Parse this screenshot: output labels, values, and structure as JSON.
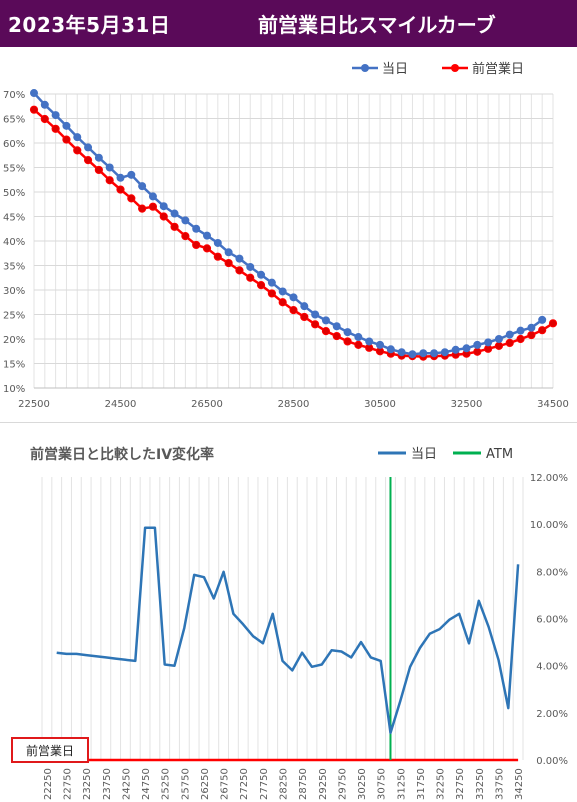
{
  "header": {
    "date": "2023年5月31日",
    "title": "前営業日比スマイルカーブ"
  },
  "colors": {
    "header_bg": "#5a0a59",
    "today": "#4472c4",
    "previous": "#ff0000",
    "atm": "#00b050",
    "iv_change": "#2e75b6"
  },
  "prev_day_label": "前営業日",
  "chart_data": [
    {
      "type": "line",
      "legend": [
        "当日",
        "前営業日"
      ],
      "legend_position": "top-right",
      "grid": true,
      "xlim": [
        22500,
        34500
      ],
      "x_ticks": [
        22500,
        24500,
        26500,
        28500,
        30500,
        32500,
        34500
      ],
      "ylim": [
        10,
        70
      ],
      "y_ticks": [
        "10%",
        "15%",
        "20%",
        "25%",
        "30%",
        "35%",
        "40%",
        "45%",
        "50%",
        "55%",
        "60%",
        "65%",
        "70%"
      ],
      "series": [
        {
          "name": "当日",
          "x": [
            22500,
            22750,
            23000,
            23250,
            23500,
            23750,
            24000,
            24250,
            24500,
            24750,
            25000,
            25250,
            25500,
            25750,
            26000,
            26250,
            26500,
            26750,
            27000,
            27250,
            27500,
            27750,
            28000,
            28250,
            28500,
            28750,
            29000,
            29250,
            29500,
            29750,
            30000,
            30250,
            30500,
            30750,
            31000,
            31250,
            31500,
            31750,
            32000,
            32250,
            32500,
            32750,
            33000,
            33250,
            33500,
            33750,
            34000,
            34250
          ],
          "values": [
            70.2,
            67.8,
            65.7,
            63.5,
            61.2,
            59.1,
            57.0,
            55.0,
            52.9,
            53.5,
            51.2,
            49.1,
            47.1,
            45.6,
            44.2,
            42.5,
            41.1,
            39.6,
            37.7,
            36.4,
            34.7,
            33.1,
            31.5,
            29.7,
            28.5,
            26.7,
            25.0,
            23.8,
            22.6,
            21.4,
            20.4,
            19.5,
            18.8,
            17.9,
            17.3,
            16.9,
            17.1,
            17.1,
            17.3,
            17.8,
            18.1,
            18.8,
            19.3,
            20.0,
            20.9,
            21.7,
            22.3,
            23.9
          ]
        },
        {
          "name": "前営業日",
          "x": [
            22500,
            22750,
            23000,
            23250,
            23500,
            23750,
            24000,
            24250,
            24500,
            24750,
            25000,
            25250,
            25500,
            25750,
            26000,
            26250,
            26500,
            26750,
            27000,
            27250,
            27500,
            27750,
            28000,
            28250,
            28500,
            28750,
            29000,
            29250,
            29500,
            29750,
            30000,
            30250,
            30500,
            30750,
            31000,
            31250,
            31500,
            31750,
            32000,
            32250,
            32500,
            32750,
            33000,
            33250,
            33500,
            33750,
            34000,
            34250,
            34500
          ],
          "values": [
            66.8,
            64.9,
            62.9,
            60.7,
            58.5,
            56.5,
            54.5,
            52.4,
            50.5,
            48.7,
            46.6,
            47.0,
            45.0,
            42.9,
            41.0,
            39.2,
            38.5,
            36.8,
            35.5,
            34.0,
            32.5,
            31.0,
            29.3,
            27.5,
            25.9,
            24.5,
            23.0,
            21.6,
            20.6,
            19.5,
            18.8,
            18.2,
            17.5,
            17.0,
            16.6,
            16.5,
            16.4,
            16.5,
            16.6,
            16.8,
            17.0,
            17.4,
            18.0,
            18.6,
            19.2,
            20.0,
            20.8,
            21.8,
            23.2
          ]
        }
      ]
    },
    {
      "type": "line",
      "title": "前営業日と比較したIV変化率",
      "legend": [
        "当日",
        "ATM"
      ],
      "legend_position": "top-right",
      "grid": true,
      "categories": [
        "22250",
        "22500",
        "22750",
        "23000",
        "23250",
        "23500",
        "23750",
        "24000",
        "24250",
        "24500",
        "24750",
        "25000",
        "25250",
        "25500",
        "25750",
        "26000",
        "26250",
        "26500",
        "26750",
        "27000",
        "27250",
        "27500",
        "27750",
        "28000",
        "28250",
        "28500",
        "28750",
        "29000",
        "29250",
        "29500",
        "29750",
        "30000",
        "30250",
        "30500",
        "30750",
        "31000",
        "31250",
        "31500",
        "31750",
        "32000",
        "32250",
        "32500",
        "32750",
        "33000",
        "33250",
        "33500",
        "33750",
        "34000",
        "34250"
      ],
      "x_tick_labels": [
        "22250",
        "22750",
        "23250",
        "23750",
        "24250",
        "24750",
        "25250",
        "25750",
        "26250",
        "26750",
        "27250",
        "27750",
        "28250",
        "28750",
        "29250",
        "29750",
        "30250",
        "30750",
        "31250",
        "31750",
        "32250",
        "32750",
        "33250",
        "33750",
        "34250"
      ],
      "ylim": [
        0,
        12
      ],
      "y_ticks": [
        "0.00%",
        "2.00%",
        "4.00%",
        "6.00%",
        "8.00%",
        "10.00%",
        "12.00%"
      ],
      "atm_strike": "31000",
      "series": [
        {
          "name": "当日",
          "values": [
            null,
            4.55,
            4.5,
            4.5,
            4.45,
            4.4,
            4.35,
            4.3,
            4.25,
            4.2,
            9.85,
            9.85,
            4.05,
            4.0,
            5.6,
            7.85,
            7.75,
            6.85,
            7.98,
            6.2,
            5.75,
            5.25,
            4.95,
            6.2,
            4.2,
            3.8,
            4.55,
            3.95,
            4.05,
            4.65,
            4.6,
            4.35,
            5.0,
            4.35,
            4.2,
            1.15,
            2.5,
            3.95,
            4.75,
            5.35,
            5.55,
            5.95,
            6.2,
            4.95,
            6.75,
            5.65,
            4.25,
            2.2,
            8.3
          ]
        },
        {
          "name": "前営業日",
          "values": [
            0,
            0,
            0,
            0,
            0,
            0,
            0,
            0,
            0,
            0,
            0,
            0,
            0,
            0,
            0,
            0,
            0,
            0,
            0,
            0,
            0,
            0,
            0,
            0,
            0,
            0,
            0,
            0,
            0,
            0,
            0,
            0,
            0,
            0,
            0,
            0,
            0,
            0,
            0,
            0,
            0,
            0,
            0,
            0,
            0,
            0,
            0,
            0,
            0
          ]
        }
      ]
    }
  ]
}
